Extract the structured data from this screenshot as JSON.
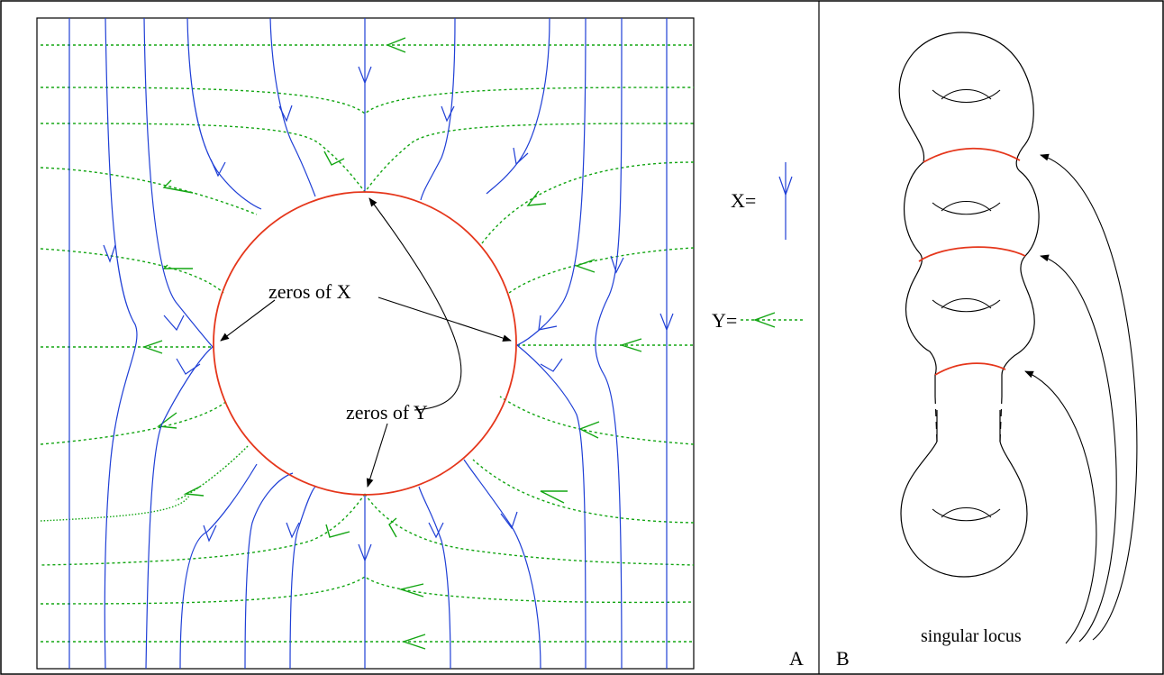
{
  "panel_a": {
    "label": "A",
    "zeros_x_label": "zeros of X",
    "zeros_y_label": "zeros of Y"
  },
  "legend": {
    "x_label": "X=",
    "y_label": "Y="
  },
  "panel_b": {
    "label": "B",
    "singular_label": "singular locus"
  },
  "colors": {
    "x_field": "#1f3fd6",
    "y_field": "#12a512",
    "circle": "#e5361b",
    "outline": "#000000"
  }
}
